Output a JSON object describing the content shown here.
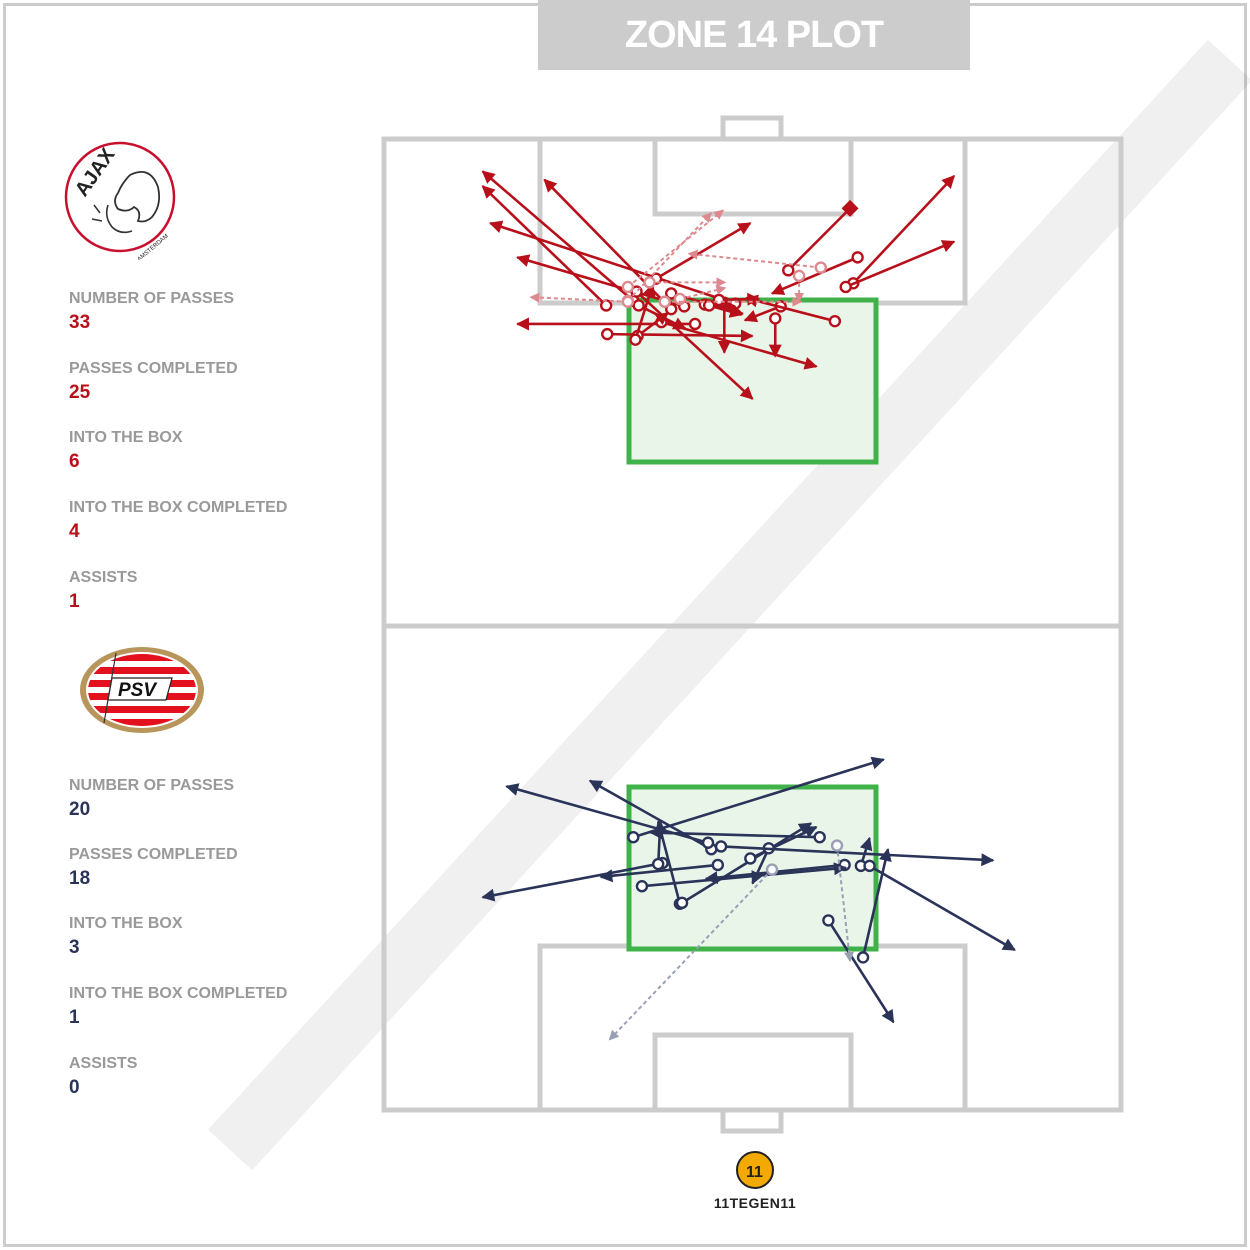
{
  "title": "ZONE 14 PLOT",
  "teams": [
    {
      "name": "Ajax",
      "logo_text": "AJAX",
      "logo_subtext": "AMSTERDAM",
      "color": "#b8101a",
      "stats": [
        {
          "label": "NUMBER OF PASSES",
          "value": "33"
        },
        {
          "label": "PASSES COMPLETED",
          "value": "25"
        },
        {
          "label": "INTO THE BOX",
          "value": "6"
        },
        {
          "label": "INTO THE BOX COMPLETED",
          "value": "4"
        },
        {
          "label": "ASSISTS",
          "value": "1"
        }
      ]
    },
    {
      "name": "PSV",
      "logo_text": "PSV",
      "color": "#2a3358",
      "stats": [
        {
          "label": "NUMBER OF PASSES",
          "value": "20"
        },
        {
          "label": "PASSES COMPLETED",
          "value": "18"
        },
        {
          "label": "INTO THE BOX",
          "value": "3"
        },
        {
          "label": "INTO THE BOX COMPLETED",
          "value": "1"
        },
        {
          "label": "ASSISTS",
          "value": "0"
        }
      ]
    }
  ],
  "brand": {
    "text": "11TEGEN11"
  },
  "chart_data": {
    "type": "scatter",
    "description_units": "pitch coordinates: x 0-68 across the pitch, y 0-105 along the pitch from the attacking goal line",
    "series": [
      {
        "name": "Ajax",
        "color": "#b8101a",
        "passes": [
          {
            "from": [
              23.0,
              17.5
            ],
            "to": [
              9.1,
              3.5
            ],
            "completed": true
          },
          {
            "from": [
              20.5,
              18.0
            ],
            "to": [
              9.1,
              5.1
            ],
            "completed": true
          },
          {
            "from": [
              26.5,
              18.4
            ],
            "to": [
              14.8,
              4.4
            ],
            "completed": true
          },
          {
            "from": [
              32.4,
              17.8
            ],
            "to": [
              9.8,
              9.1
            ],
            "completed": true
          },
          {
            "from": [
              27.7,
              18.1
            ],
            "to": [
              12.3,
              12.8
            ],
            "completed": true
          },
          {
            "from": [
              25.1,
              15.1
            ],
            "to": [
              33.8,
              9.1
            ],
            "completed": true
          },
          {
            "from": [
              37.3,
              14.2
            ],
            "to": [
              43.0,
              7.5
            ],
            "completed": true,
            "assist": true
          },
          {
            "from": [
              43.3,
              15.6
            ],
            "to": [
              52.6,
              4.0
            ],
            "completed": true
          },
          {
            "from": [
              42.6,
              16.0
            ],
            "to": [
              52.6,
              11.1
            ],
            "completed": true
          },
          {
            "from": [
              43.7,
              12.8
            ],
            "to": [
              35.8,
              16.7
            ],
            "completed": true
          },
          {
            "from": [
              20.6,
              21.1
            ],
            "to": [
              34.0,
              21.3
            ],
            "completed": true
          },
          {
            "from": [
              36.6,
              18.1
            ],
            "to": [
              33.3,
              19.6
            ],
            "completed": true
          },
          {
            "from": [
              26.5,
              16.7
            ],
            "to": [
              33.1,
              18.9
            ],
            "completed": true
          },
          {
            "from": [
              28.7,
              20.0
            ],
            "to": [
              12.3,
              20.0
            ],
            "completed": true
          },
          {
            "from": [
              25.6,
              19.8
            ],
            "to": [
              39.9,
              24.6
            ],
            "completed": true
          },
          {
            "from": [
              36.1,
              19.4
            ],
            "to": [
              36.1,
              23.5
            ],
            "completed": true
          },
          {
            "from": [
              31.4,
              17.7
            ],
            "to": [
              31.4,
              23.1
            ],
            "completed": true
          },
          {
            "from": [
              30.9,
              17.4
            ],
            "to": [
              34.6,
              17.3
            ],
            "completed": true
          },
          {
            "from": [
              29.6,
              17.9
            ],
            "to": [
              32.4,
              18.1
            ],
            "completed": true
          },
          {
            "from": [
              23.3,
              16.5
            ],
            "to": [
              34.0,
              28.1
            ],
            "completed": true
          },
          {
            "from": [
              41.6,
              19.7
            ],
            "to": [
              33.4,
              17.2
            ],
            "completed": true
          },
          {
            "from": [
              23.5,
              18.0
            ],
            "to": [
              27.8,
              20.5
            ],
            "completed": true
          },
          {
            "from": [
              23.4,
              21.3
            ],
            "to": [
              26.2,
              18.8
            ],
            "completed": true
          },
          {
            "from": [
              23.2,
              21.7
            ],
            "to": [
              24.8,
              15.7
            ],
            "completed": true
          },
          {
            "from": [
              30.0,
              18.0
            ],
            "to": [
              33.0,
              19.0
            ],
            "completed": true
          },
          {
            "from": [
              22.5,
              17.5
            ],
            "to": [
              30.2,
              8.0
            ],
            "completed": false
          },
          {
            "from": [
              22.5,
              16.0
            ],
            "to": [
              31.3,
              7.7
            ],
            "completed": false
          },
          {
            "from": [
              40.3,
              13.9
            ],
            "to": [
              28.1,
              12.4
            ],
            "completed": false
          },
          {
            "from": [
              24.5,
              15.5
            ],
            "to": [
              31.5,
              15.5
            ],
            "completed": false
          },
          {
            "from": [
              22.5,
              17.6
            ],
            "to": [
              13.5,
              17.1
            ],
            "completed": false
          },
          {
            "from": [
              27.3,
              17.3
            ],
            "to": [
              31.5,
              16.1
            ],
            "completed": false
          },
          {
            "from": [
              38.3,
              14.8
            ],
            "to": [
              38.3,
              17.6
            ],
            "completed": false
          },
          {
            "from": [
              25.9,
              17.6
            ],
            "to": [
              38.5,
              17.6
            ],
            "completed": false
          }
        ]
      },
      {
        "name": "PSV",
        "color": "#2a3358",
        "passes": [
          {
            "from": [
              23.0,
              75.5
            ],
            "to": [
              46.1,
              67.1
            ],
            "completed": true
          },
          {
            "from": [
              25.7,
              78.3
            ],
            "to": [
              9.1,
              82.0
            ],
            "completed": true
          },
          {
            "from": [
              30.2,
              76.8
            ],
            "to": [
              19.0,
              69.4
            ],
            "completed": true
          },
          {
            "from": [
              29.9,
              76.1
            ],
            "to": [
              11.3,
              70.0
            ],
            "completed": true
          },
          {
            "from": [
              25.3,
              78.4
            ],
            "to": [
              25.5,
              73.8
            ],
            "completed": true
          },
          {
            "from": [
              27.3,
              82.7
            ],
            "to": [
              25.3,
              73.8
            ],
            "completed": true
          },
          {
            "from": [
              27.5,
              82.6
            ],
            "to": [
              39.4,
              74.0
            ],
            "completed": true
          },
          {
            "from": [
              33.8,
              77.8
            ],
            "to": [
              39.9,
              74.4
            ],
            "completed": true
          },
          {
            "from": [
              35.5,
              76.7
            ],
            "to": [
              34.0,
              80.5
            ],
            "completed": true
          },
          {
            "from": [
              40.2,
              75.5
            ],
            "to": [
              24.6,
              75.0
            ],
            "completed": true
          },
          {
            "from": [
              31.1,
              76.5
            ],
            "to": [
              56.2,
              78.0
            ],
            "completed": true
          },
          {
            "from": [
              42.5,
              78.5
            ],
            "to": [
              29.7,
              80.0
            ],
            "completed": true
          },
          {
            "from": [
              23.8,
              80.8
            ],
            "to": [
              42.6,
              78.8
            ],
            "completed": true
          },
          {
            "from": [
              44.0,
              78.6
            ],
            "to": [
              44.8,
              75.6
            ],
            "completed": true
          },
          {
            "from": [
              44.8,
              78.6
            ],
            "to": [
              58.2,
              87.7
            ],
            "completed": true
          },
          {
            "from": [
              44.2,
              88.5
            ],
            "to": [
              46.5,
              76.8
            ],
            "completed": true
          },
          {
            "from": [
              41.0,
              84.5
            ],
            "to": [
              47.0,
              95.5
            ],
            "completed": true
          },
          {
            "from": [
              30.8,
              78.5
            ],
            "to": [
              20.0,
              79.8
            ],
            "completed": true
          },
          {
            "from": [
              35.8,
              79.0
            ],
            "to": [
              20.8,
              97.4
            ],
            "completed": false
          },
          {
            "from": [
              41.8,
              76.4
            ],
            "to": [
              43.0,
              88.9
            ],
            "completed": false
          }
        ]
      }
    ]
  }
}
